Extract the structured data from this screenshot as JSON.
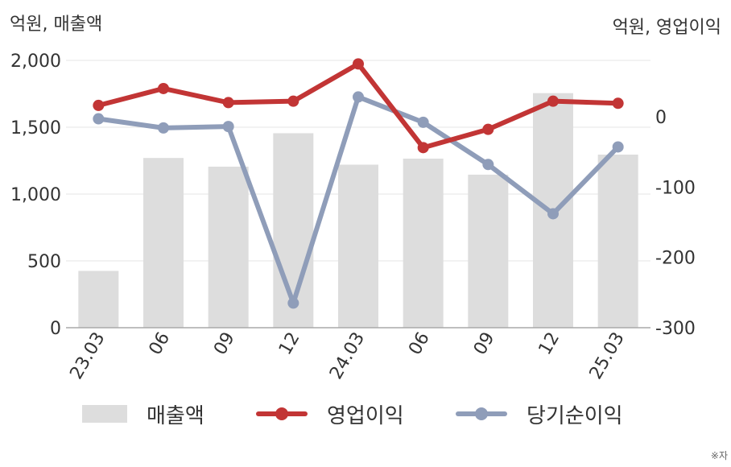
{
  "units": {
    "left": "억원, 매출액",
    "right": "억원, 영업이익"
  },
  "footnote": "※자",
  "legend": {
    "sales": "매출액",
    "operating": "영업이익",
    "net": "당기순이익"
  },
  "colors": {
    "bar": "#dddddd",
    "operating": "#c23535",
    "net": "#8f9db9",
    "grid": "#e6e6e6",
    "axis": "#aaaaaa",
    "text": "#333333"
  },
  "chart_data": {
    "type": "bar",
    "categories": [
      "23.03",
      "06",
      "09",
      "12",
      "24.03",
      "06",
      "09",
      "12",
      "25.03"
    ],
    "y_left": {
      "label": "억원, 매출액",
      "ylim": [
        0,
        2000
      ],
      "ticks": [
        0,
        500,
        1000,
        1500,
        2000
      ],
      "tick_labels": [
        "0",
        "500",
        "1,000",
        "1,500",
        "2,000"
      ]
    },
    "y_right": {
      "label": "억원, 영업이익",
      "ylim": [
        -300,
        80
      ],
      "ticks": [
        -300,
        -200,
        -100,
        0
      ],
      "tick_labels": [
        "-300",
        "-200",
        "-100",
        "0"
      ]
    },
    "series": [
      {
        "name": "매출액",
        "type": "bar",
        "axis": "left",
        "values": [
          425,
          1270,
          1205,
          1455,
          1220,
          1265,
          1145,
          1755,
          1295
        ]
      },
      {
        "name": "영업이익",
        "type": "line",
        "axis": "right",
        "values": [
          16,
          40,
          20,
          22,
          75,
          -44,
          -18,
          22,
          19
        ]
      },
      {
        "name": "당기순이익",
        "type": "line",
        "axis": "right",
        "values": [
          -3,
          -16,
          -14,
          -265,
          28,
          -8,
          -68,
          -138,
          -43
        ]
      }
    ],
    "grid": true,
    "legend_position": "bottom"
  }
}
